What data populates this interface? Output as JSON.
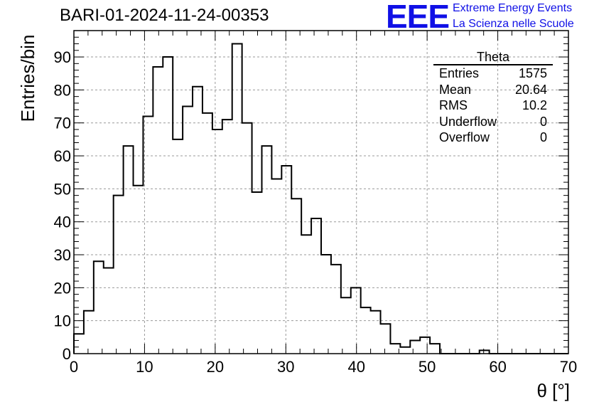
{
  "header": {
    "title": "BARI-01-2024-11-24-00353",
    "logo_text": "EEE",
    "brand_line1": "Extreme Energy Events",
    "brand_line2": "La Scienza nelle Scuole"
  },
  "stats": {
    "title": "Theta",
    "rows": [
      {
        "label": "Entries",
        "value": "1575"
      },
      {
        "label": "Mean",
        "value": "20.64"
      },
      {
        "label": "RMS",
        "value": "10.2"
      },
      {
        "label": "Underflow",
        "value": "0"
      },
      {
        "label": "Overflow",
        "value": "0"
      }
    ]
  },
  "chart_data": {
    "type": "bar",
    "title": "BARI-01-2024-11-24-00353",
    "xlabel": "θ [°]",
    "ylabel": "Entries/bin",
    "xlim": [
      0,
      70
    ],
    "ylim": [
      0,
      98
    ],
    "bin_width": 1.4,
    "grid": true,
    "x_ticks": [
      0,
      10,
      20,
      30,
      40,
      50,
      60,
      70
    ],
    "y_ticks": [
      0,
      10,
      20,
      30,
      40,
      50,
      60,
      70,
      80,
      90
    ],
    "values": [
      6,
      13,
      28,
      26,
      48,
      63,
      51,
      72,
      87,
      90,
      65,
      75,
      81,
      73,
      68,
      71,
      94,
      70,
      49,
      63,
      53,
      57,
      47,
      36,
      41,
      30,
      27,
      17,
      20,
      14,
      13,
      9,
      3,
      2,
      4,
      5,
      3,
      0,
      0,
      0,
      0,
      1,
      0,
      0,
      0,
      0,
      0,
      0,
      0,
      0
    ],
    "colors": {
      "line": "#000000",
      "grid": "#999999"
    }
  }
}
